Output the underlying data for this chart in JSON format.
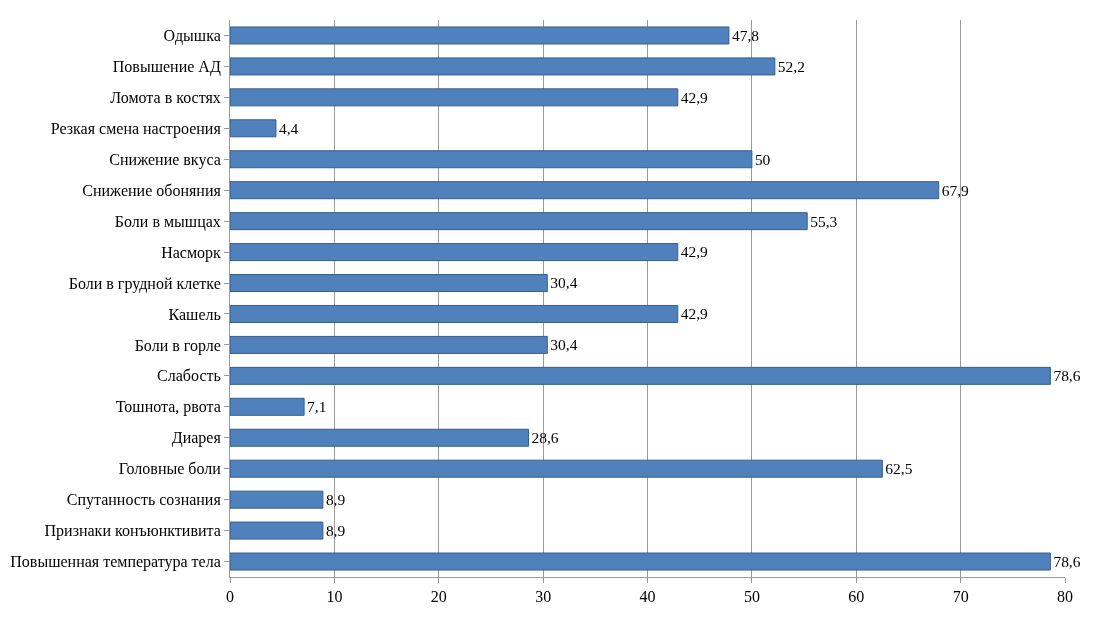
{
  "chart_data": {
    "type": "bar",
    "orientation": "horizontal",
    "categories": [
      "Одышка",
      "Повышение АД",
      "Ломота в костях",
      "Резкая смена настроения",
      "Снижение вкуса",
      "Снижение обоняния",
      "Боли в мышцах",
      "Насморк",
      "Боли в грудной клетке",
      "Кашель",
      "Боли в горле",
      "Слабость",
      "Тошнота, рвота",
      "Диарея",
      "Головные боли",
      "Спутанность сознания",
      "Признаки конъюнктивита",
      "Повышенная температура тела"
    ],
    "values": [
      47.8,
      52.2,
      42.9,
      4.4,
      50,
      67.9,
      55.3,
      42.9,
      30.4,
      42.9,
      30.4,
      78.6,
      7.1,
      28.6,
      62.5,
      8.9,
      8.9,
      78.6
    ],
    "value_labels": [
      "47,8",
      "52,2",
      "42,9",
      "4,4",
      "50",
      "67,9",
      "55,3",
      "42,9",
      "30,4",
      "42,9",
      "30,4",
      "78,6",
      "7,1",
      "28,6",
      "62,5",
      "8,9",
      "8,9",
      "78,6"
    ],
    "color": "#4f81bd",
    "xlim": [
      0,
      80
    ],
    "xticks": [
      0,
      10,
      20,
      30,
      40,
      50,
      60,
      70,
      80
    ],
    "grid": "x"
  }
}
